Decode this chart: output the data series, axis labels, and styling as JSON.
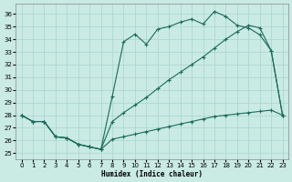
{
  "xlabel": "Humidex (Indice chaleur)",
  "bg_color": "#caeae4",
  "grid_color": "#a8d4cc",
  "line_color": "#1a6b5a",
  "xlim": [
    -0.5,
    23.5
  ],
  "ylim": [
    24.5,
    36.8
  ],
  "xticks": [
    0,
    1,
    2,
    3,
    4,
    5,
    6,
    7,
    8,
    9,
    10,
    11,
    12,
    13,
    14,
    15,
    16,
    17,
    18,
    19,
    20,
    21,
    22,
    23
  ],
  "yticks": [
    25,
    26,
    27,
    28,
    29,
    30,
    31,
    32,
    33,
    34,
    35,
    36
  ],
  "s1_x": [
    0,
    1,
    2,
    3,
    4,
    5,
    6,
    7,
    8,
    9,
    10,
    11,
    12,
    13,
    14,
    15,
    16,
    17,
    18,
    19,
    20,
    21,
    22,
    23
  ],
  "s1_y": [
    28.0,
    27.5,
    27.5,
    26.3,
    26.2,
    25.7,
    25.5,
    25.3,
    29.5,
    33.8,
    34.4,
    33.6,
    34.8,
    35.0,
    35.35,
    35.6,
    35.2,
    36.2,
    35.8,
    35.1,
    34.9,
    34.35,
    33.1,
    28.0
  ],
  "s2_x": [
    0,
    1,
    2,
    3,
    4,
    5,
    6,
    7,
    8,
    9,
    10,
    11,
    12,
    13,
    14,
    15,
    16,
    17,
    18,
    19,
    20,
    21,
    22,
    23
  ],
  "s2_y": [
    28.0,
    27.5,
    27.5,
    26.3,
    26.2,
    25.7,
    25.5,
    25.3,
    27.5,
    28.2,
    28.8,
    29.4,
    30.1,
    30.8,
    31.4,
    32.0,
    32.6,
    33.3,
    34.0,
    34.6,
    35.1,
    34.9,
    33.1,
    28.0
  ],
  "s3_x": [
    0,
    1,
    2,
    3,
    4,
    5,
    6,
    7,
    8,
    9,
    10,
    11,
    12,
    13,
    14,
    15,
    16,
    17,
    18,
    19,
    20,
    21,
    22,
    23
  ],
  "s3_y": [
    28.0,
    27.5,
    27.5,
    26.3,
    26.2,
    25.7,
    25.5,
    25.3,
    26.1,
    26.3,
    26.5,
    26.7,
    26.9,
    27.1,
    27.3,
    27.5,
    27.7,
    27.9,
    28.0,
    28.1,
    28.2,
    28.3,
    28.4,
    28.0
  ]
}
